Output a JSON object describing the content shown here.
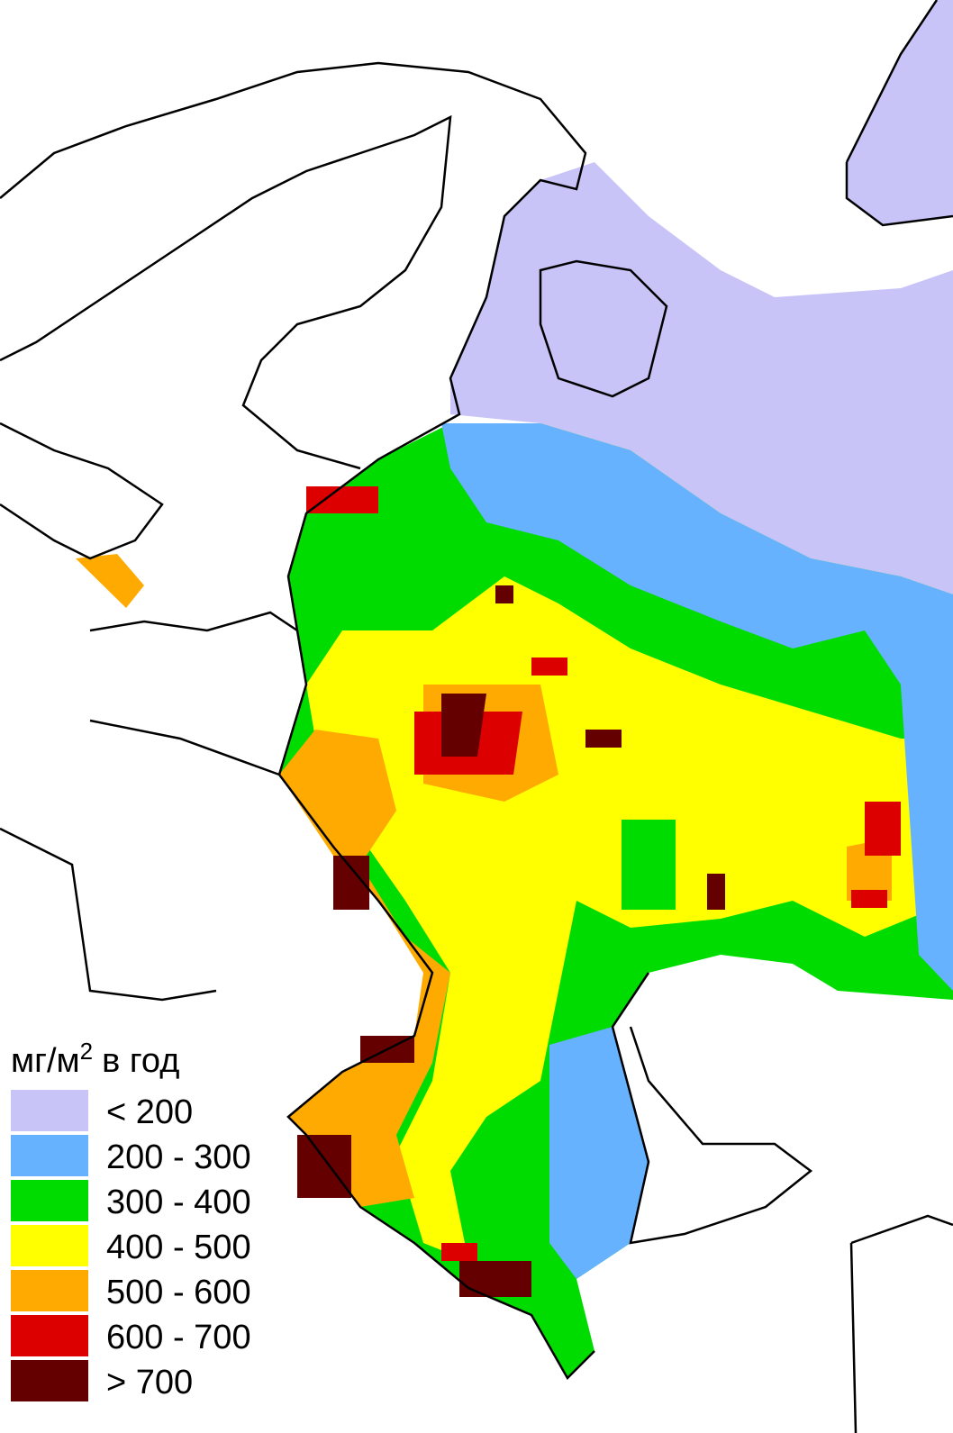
{
  "legend": {
    "unit": "мг/м",
    "unit_power": "2",
    "unit_suffix": "в год",
    "items": [
      {
        "label": "< 200",
        "color": "#c8c4f8"
      },
      {
        "label": "200 - 300",
        "color": "#66b2ff"
      },
      {
        "label": "300 - 400",
        "color": "#00dc00"
      },
      {
        "label": "400 - 500",
        "color": "#ffff00"
      },
      {
        "label": "500 - 600",
        "color": "#ffaa00"
      },
      {
        "label": "600 - 700",
        "color": "#dc0000"
      },
      {
        "label": "> 700",
        "color": "#640000"
      }
    ]
  }
}
